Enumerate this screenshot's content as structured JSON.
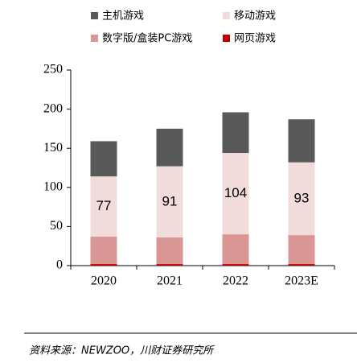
{
  "chart_data": {
    "type": "stacked_bar",
    "categories": [
      "2020",
      "2021",
      "2022",
      "2023E"
    ],
    "series": [
      {
        "name": "网页游戏",
        "color": "#c00000",
        "values": [
          2,
          2,
          2,
          2
        ]
      },
      {
        "name": "数字版/盒装PC游戏",
        "color": "#d99694",
        "values": [
          35,
          34,
          38,
          37
        ]
      },
      {
        "name": "移动游戏",
        "color": "#f2dcdb",
        "values": [
          77,
          91,
          104,
          93
        ],
        "data_labels": true
      },
      {
        "name": "主机游戏",
        "color": "#595959",
        "values": [
          45,
          48,
          52,
          55
        ]
      }
    ],
    "ylim": [
      0,
      250
    ],
    "yticks": [
      0,
      50,
      100,
      150,
      200,
      250
    ],
    "source": "资料来源：NEWZOO，川财证券研究所"
  }
}
